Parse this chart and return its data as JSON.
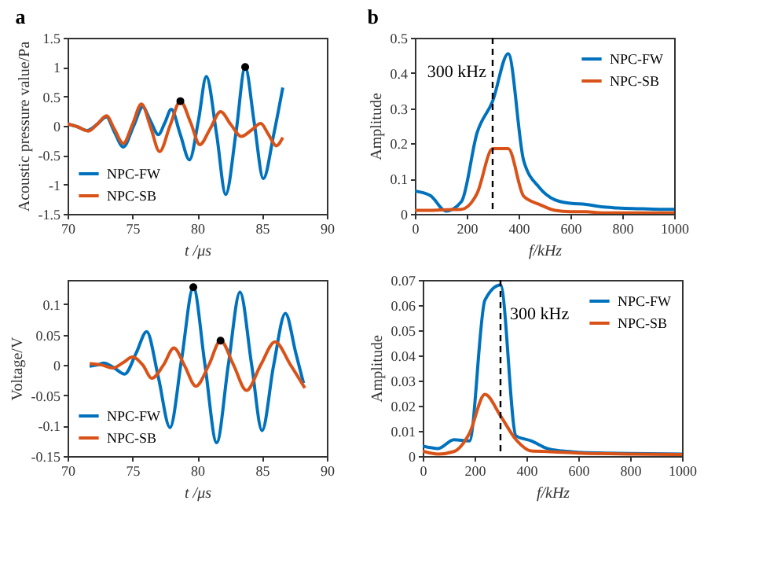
{
  "chart_data": [
    {
      "type": "line",
      "title": "a",
      "xlabel": "t /μs",
      "ylabel": "Acoustic pressure value/Pa",
      "xlim": [
        70,
        90
      ],
      "xticks": [
        70,
        75,
        80,
        85,
        90
      ],
      "ylim": [
        -1.5,
        1.5
      ],
      "yticks": [
        -1.5,
        -1,
        -0.5,
        0,
        0.5,
        1,
        1.5
      ],
      "legend": "bottom left",
      "grid": false,
      "series": [
        {
          "name": "NPC-FW",
          "color": "#0072bd",
          "x": [
            70,
            70.8,
            71.5,
            72.3,
            73,
            73.6,
            74.3,
            75.1,
            75.8,
            76.4,
            77,
            77.5,
            78,
            78.7,
            79.4,
            80.1,
            80.7,
            81.5,
            82.2,
            83,
            83.7,
            84.4,
            85.1,
            85.9,
            86.6
          ],
          "values": [
            0.03,
            -0.02,
            -0.08,
            0.03,
            0.15,
            -0.1,
            -0.36,
            0,
            0.32,
            0.08,
            -0.15,
            0.05,
            0.28,
            -0.15,
            -0.58,
            0.1,
            0.84,
            -0.15,
            -1.17,
            -0.1,
            1.0,
            0.05,
            -0.9,
            -0.15,
            0.65
          ]
        },
        {
          "name": "NPC-SB",
          "color": "#d95319",
          "x": [
            70,
            70.8,
            71.6,
            72.3,
            73,
            73.6,
            74.3,
            75,
            75.7,
            76.4,
            77.1,
            77.9,
            78.7,
            79.5,
            80.2,
            81,
            81.8,
            82.6,
            83.4,
            84.2,
            84.9,
            85.5,
            86.1,
            86.6
          ],
          "values": [
            0.03,
            -0.02,
            -0.09,
            0.03,
            0.17,
            -0.05,
            -0.3,
            0.02,
            0.37,
            -0.02,
            -0.44,
            0,
            0.42,
            0.05,
            -0.32,
            -0.05,
            0.24,
            0.02,
            -0.18,
            -0.07,
            0.04,
            -0.15,
            -0.34,
            -0.2
          ]
        },
        {
          "type": "scatter",
          "color": "#000000",
          "x": [
            78.7,
            83.7
          ],
          "values": [
            0.42,
            1.0
          ]
        }
      ]
    },
    {
      "type": "line",
      "title": "b",
      "xlabel": "f/kHz",
      "ylabel": "Amplitude",
      "xlim": [
        0,
        1000
      ],
      "xticks": [
        0,
        200,
        400,
        600,
        800,
        1000
      ],
      "ylim": [
        0,
        0.5
      ],
      "yticks": [
        0,
        0.1,
        0.2,
        0.3,
        0.4,
        0.5
      ],
      "legend": "top right",
      "grid": false,
      "ref_lines": [
        {
          "axis": "x",
          "value": 300,
          "line_style": "dashed",
          "color": "#000000"
        }
      ],
      "annotations": [
        "300 kHz"
      ],
      "series": [
        {
          "name": "NPC-FW",
          "color": "#0072bd",
          "x": [
            0,
            60,
            120,
            180,
            240,
            300,
            360,
            420,
            480,
            540,
            600,
            660,
            720,
            780,
            840,
            900,
            960,
            1000
          ],
          "values": [
            0.065,
            0.052,
            0.008,
            0.035,
            0.23,
            0.32,
            0.455,
            0.15,
            0.075,
            0.04,
            0.03,
            0.027,
            0.02,
            0.017,
            0.015,
            0.014,
            0.013,
            0.013
          ]
        },
        {
          "name": "NPC-SB",
          "color": "#d95319",
          "x": [
            0,
            60,
            120,
            180,
            240,
            300,
            360,
            420,
            480,
            540,
            600,
            660,
            720,
            1000
          ],
          "values": [
            0.01,
            0.01,
            0.012,
            0.013,
            0.058,
            0.185,
            0.185,
            0.05,
            0.027,
            0.01,
            0.006,
            0.006,
            0.003,
            0.003
          ]
        }
      ]
    },
    {
      "type": "line",
      "xlabel": "t /μs",
      "ylabel": "Voltage/V",
      "xlim": [
        70,
        90
      ],
      "xticks": [
        70,
        75,
        80,
        85,
        90
      ],
      "ylim": [
        -0.15,
        0.14
      ],
      "yticks": [
        -0.15,
        -0.1,
        -0.05,
        0,
        0.05,
        0.1
      ],
      "legend": "bottom left",
      "grid": false,
      "series": [
        {
          "name": "NPC-FW",
          "color": "#0072bd",
          "x": [
            71.7,
            72.3,
            72.8,
            73.6,
            74.4,
            75.3,
            76.1,
            77,
            77.9,
            78.8,
            79.7,
            80.6,
            81.5,
            82.4,
            83.3,
            84.2,
            85,
            85.9,
            86.8,
            87.6,
            88.2
          ],
          "values": [
            -0.002,
            0,
            0.003,
            -0.005,
            -0.015,
            0.02,
            0.055,
            -0.02,
            -0.103,
            0.01,
            0.128,
            0,
            -0.128,
            0,
            0.12,
            0,
            -0.108,
            0,
            0.085,
            0.02,
            -0.03
          ]
        },
        {
          "name": "NPC-SB",
          "color": "#d95319",
          "x": [
            71.7,
            72.6,
            73.5,
            74.3,
            75,
            75.8,
            76.5,
            77.4,
            78.2,
            79,
            79.9,
            80.9,
            81.8,
            82.8,
            83.8,
            84.9,
            86,
            87.2,
            88.3
          ],
          "values": [
            0.002,
            0,
            -0.005,
            0.004,
            0.013,
            0,
            -0.022,
            0,
            0.028,
            0,
            -0.035,
            0,
            0.04,
            0,
            -0.042,
            0,
            0.038,
            0,
            -0.038
          ]
        },
        {
          "type": "scatter",
          "color": "#000000",
          "x": [
            79.7,
            81.8
          ],
          "values": [
            0.128,
            0.04
          ]
        }
      ]
    },
    {
      "type": "line",
      "xlabel": "f/kHz",
      "ylabel": "Amplitude",
      "xlim": [
        0,
        1000
      ],
      "xticks": [
        0,
        200,
        400,
        600,
        800,
        1000
      ],
      "ylim": [
        0,
        0.07
      ],
      "yticks": [
        0,
        0.01,
        0.02,
        0.03,
        0.04,
        0.05,
        0.06,
        0.07
      ],
      "legend": "top right",
      "grid": false,
      "ref_lines": [
        {
          "axis": "x",
          "value": 300,
          "line_style": "dashed",
          "color": "#000000"
        }
      ],
      "annotations": [
        "300 kHz"
      ],
      "series": [
        {
          "name": "NPC-FW",
          "color": "#0072bd",
          "x": [
            0,
            60,
            120,
            180,
            240,
            300,
            360,
            420,
            480,
            540,
            600,
            700,
            800,
            1000
          ],
          "values": [
            0.004,
            0.003,
            0.0065,
            0.006,
            0.062,
            0.068,
            0.008,
            0.006,
            0.003,
            0.002,
            0.0015,
            0.0012,
            0.001,
            0.0008
          ]
        },
        {
          "name": "NPC-SB",
          "color": "#d95319",
          "x": [
            0,
            60,
            120,
            180,
            240,
            300,
            360,
            420,
            480,
            600,
            800,
            1000
          ],
          "values": [
            0.002,
            0.0008,
            0.0018,
            0.009,
            0.0245,
            0.016,
            0.0065,
            0.002,
            0.0018,
            0.0012,
            0.0008,
            0.0006
          ]
        }
      ]
    }
  ]
}
